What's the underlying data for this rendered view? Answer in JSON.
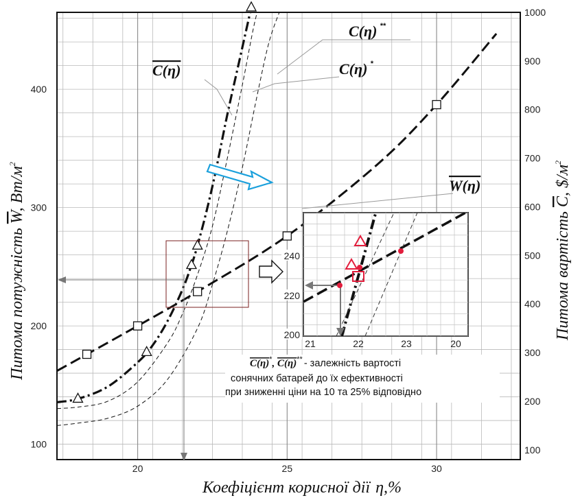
{
  "chart_data": {
    "type": "line",
    "xlabel": "Коефіцієнт корисної дії",
    "xlabel_symbol": "η",
    "xlabel_unit": ",%",
    "ylabel_left": "Питома потужність W , Вт/м²",
    "ylabel_left_parts": {
      "pre": "Питома потужність ",
      "sym": "W",
      "unit": ", Вт/м",
      "sup": "2"
    },
    "ylabel_right_parts": {
      "pre": "Питома вартість ",
      "sym": "C",
      "unit": ", $/м",
      "sup": "2"
    },
    "x_ticks": [
      "20",
      "25",
      "30"
    ],
    "y_left_ticks": [
      "100",
      "200",
      "300",
      "400"
    ],
    "y_right_ticks": [
      "100",
      "200",
      "300",
      "400",
      "500",
      "600",
      "700",
      "800",
      "900",
      "1000"
    ],
    "xlim": [
      17.3,
      32.8
    ],
    "ylim_left": [
      87,
      465
    ],
    "ylim_right": [
      80,
      1000
    ],
    "series": [
      {
        "name": "W(η)",
        "axis": "left",
        "style": "long-dash",
        "marker": "square",
        "x": [
          17.3,
          18.3,
          20,
          22,
          25,
          28,
          30,
          32
        ],
        "y": [
          162,
          176,
          200,
          229,
          276,
          336,
          387,
          447
        ],
        "marker_x": [
          18.3,
          20,
          22,
          25,
          30
        ]
      },
      {
        "name": "C(η)",
        "axis": "right",
        "style": "dash-dot",
        "marker": "triangle",
        "x": [
          17.3,
          18,
          19,
          20,
          20.5,
          21,
          21.5,
          21.8,
          22,
          22.3,
          22.6,
          23,
          23.4,
          23.8
        ],
        "y": [
          198,
          205,
          230,
          280,
          315,
          365,
          430,
          480,
          520,
          590,
          670,
          790,
          900,
          1010
        ],
        "marker_x": [
          18,
          20.3,
          21.8,
          22,
          23.8
        ]
      },
      {
        "name": "C(η)*",
        "axis": "right",
        "style": "dashed-thin",
        "x": [
          17.3,
          18,
          19,
          20,
          21,
          21.5,
          22,
          22.5,
          23,
          23.5,
          24,
          24.3
        ],
        "y": [
          185,
          188,
          200,
          240,
          320,
          380,
          460,
          560,
          700,
          850,
          1000,
          1010
        ]
      },
      {
        "name": "C(η)**",
        "axis": "right",
        "style": "dashed-thin",
        "x": [
          17.3,
          18,
          19,
          20,
          21,
          22,
          22.5,
          23,
          23.5,
          24,
          24.4,
          24.8
        ],
        "y": [
          150,
          155,
          165,
          190,
          245,
          350,
          440,
          550,
          680,
          830,
          940,
          1010
        ]
      }
    ],
    "annotations": {
      "label_C": {
        "main": "C(η)"
      },
      "label_Cs": {
        "main": "C(η)",
        "sup": "*"
      },
      "label_Css": {
        "main": "C(η)",
        "sup": "**"
      },
      "label_W": {
        "main": "W(η)"
      },
      "note_prefix": "C(η)*, C(η)**",
      "note_prefix_a": "C(η)",
      "note_prefix_sup1": "*",
      "note_prefix_sep": ", ",
      "note_prefix_b": "C(η)",
      "note_prefix_sup2": "**",
      "note_line1": "- залежність  вартості",
      "note_line2": "сонячних батарей до  їх ефективності",
      "note_line3": "при зниженні ціни на 10 та 25% відповідно"
    },
    "inset": {
      "x_ticks": [
        "21",
        "22",
        "23",
        "20"
      ],
      "y_ticks": [
        "200",
        "220",
        "240"
      ],
      "xlim": [
        21,
        24
      ],
      "ylim": [
        200,
        255
      ]
    }
  }
}
